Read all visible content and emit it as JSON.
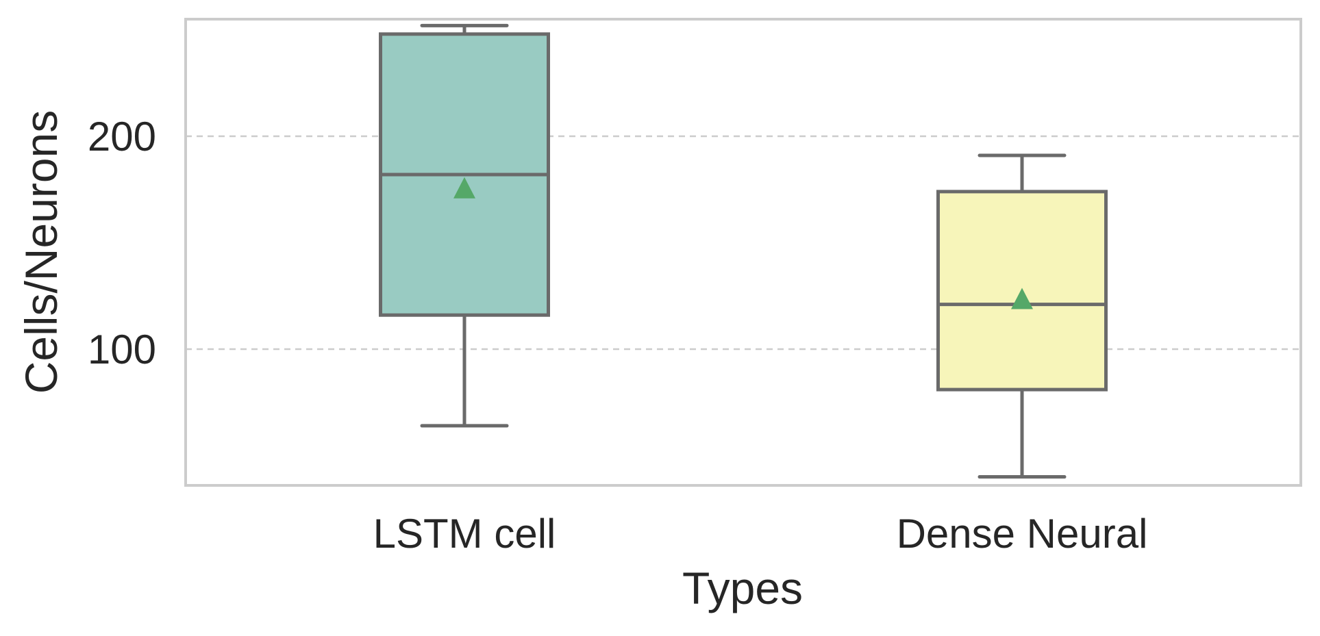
{
  "chart_data": {
    "type": "box",
    "xlabel": "Types",
    "ylabel": "Cells/Neurons",
    "ylim": [
      36,
      255
    ],
    "yticks": [
      100,
      200
    ],
    "grid": "horizontal-dashed",
    "categories": [
      "LSTM cell",
      "Dense Neural"
    ],
    "boxes": [
      {
        "category": "LSTM cell",
        "whisker_low": 64,
        "q1": 116,
        "median": 182,
        "q3": 248,
        "whisker_high": 252,
        "mean": 175,
        "fill": "#99cbc2"
      },
      {
        "category": "Dense Neural",
        "whisker_low": 40,
        "q1": 81,
        "median": 121,
        "q3": 174,
        "whisker_high": 191,
        "mean": 123,
        "fill": "#f7f5ba"
      }
    ],
    "colors": {
      "edge": "#6a6a6a",
      "mean_marker": "#55a868",
      "grid": "#cccccc",
      "frame": "#cccccc"
    }
  }
}
